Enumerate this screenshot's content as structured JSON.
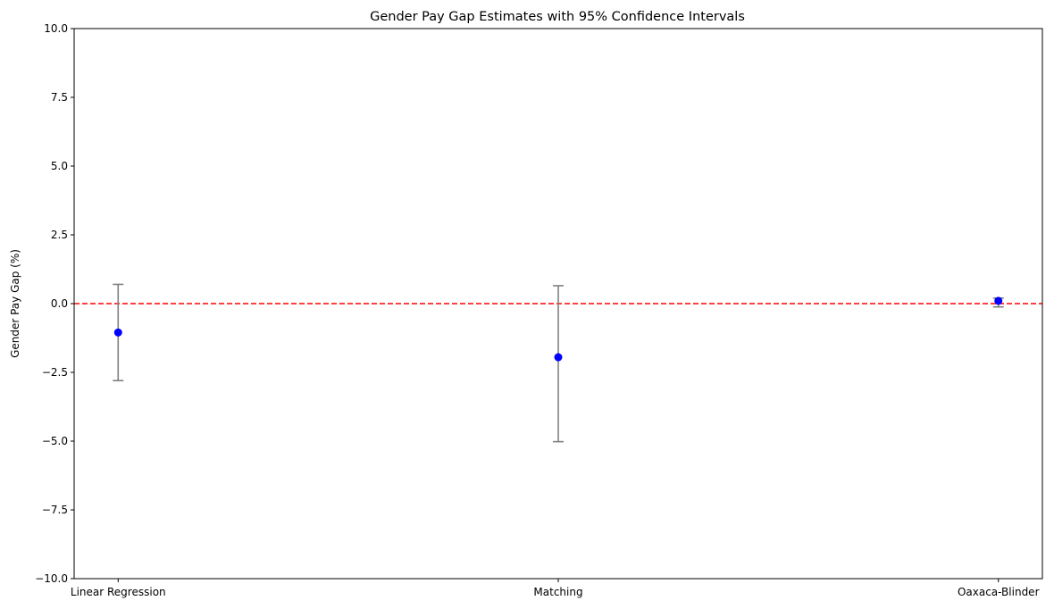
{
  "chart_data": {
    "type": "scatter",
    "title": "Gender Pay Gap Estimates with 95% Confidence Intervals",
    "xlabel": "",
    "ylabel": "Gender Pay Gap (%)",
    "categories": [
      "Linear Regression",
      "Matching",
      "Oaxaca-Blinder"
    ],
    "values": [
      -1.05,
      -1.95,
      0.1
    ],
    "ci_lower": [
      -2.8,
      -5.02,
      -0.12
    ],
    "ci_upper": [
      0.7,
      0.65,
      0.2
    ],
    "ylim": [
      -10,
      10
    ],
    "yticks": [
      -10,
      -7.5,
      -5,
      -2.5,
      0,
      2.5,
      5,
      7.5,
      10
    ],
    "ytick_labels": [
      "−10.0",
      "−7.5",
      "−5.0",
      "−2.5",
      "0.0",
      "2.5",
      "5.0",
      "7.5",
      "10.0"
    ],
    "reference_line": 0,
    "grid": false,
    "colors": {
      "point": "#0000ff",
      "errorbar": "#808080",
      "reference_line": "#ff0000",
      "axes": "#000000"
    }
  }
}
